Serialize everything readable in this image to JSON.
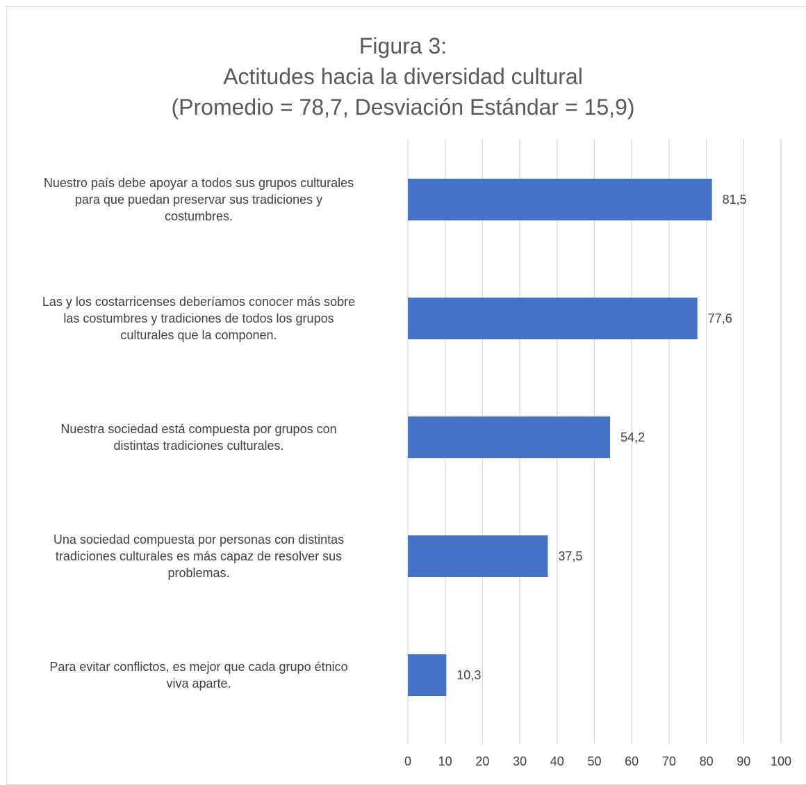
{
  "chart_data": {
    "type": "bar",
    "orientation": "horizontal",
    "title_lines": [
      "Figura 3:",
      "Actitudes hacia la diversidad cultural",
      "(Promedio = 78,7, Desviación Estándar = 15,9)"
    ],
    "categories": [
      "Nuestro país debe apoyar a todos sus grupos culturales para que puedan preservar sus tradiciones y costumbres.",
      "Las y los costarricenses deberíamos conocer más sobre las costumbres y tradiciones de todos los grupos culturales que la componen.",
      "Nuestra sociedad está compuesta por grupos con distintas tradiciones culturales.",
      "Una sociedad compuesta por personas con distintas tradiciones culturales es más capaz de resolver sus problemas.",
      "Para evitar conflictos, es mejor que cada grupo étnico viva aparte."
    ],
    "category_lines": [
      [
        "Nuestro país debe apoyar a todos sus grupos culturales",
        "para que puedan preservar sus tradiciones y",
        "costumbres."
      ],
      [
        "Las y los costarricenses deberíamos conocer más sobre",
        "las costumbres y tradiciones de todos los grupos",
        "culturales que la componen."
      ],
      [
        "Nuestra sociedad está compuesta por grupos con",
        "distintas tradiciones culturales."
      ],
      [
        "Una sociedad compuesta por personas con distintas",
        "tradiciones culturales es más capaz de resolver sus",
        "problemas."
      ],
      [
        "Para evitar conflictos, es mejor que cada grupo étnico",
        "viva aparte."
      ]
    ],
    "values": [
      81.5,
      77.6,
      54.2,
      37.5,
      10.3
    ],
    "value_labels": [
      "81,5",
      "77,6",
      "54,2",
      "37,5",
      "10,3"
    ],
    "xlim": [
      0,
      100
    ],
    "xticks": [
      "0",
      "10",
      "20",
      "30",
      "40",
      "50",
      "60",
      "70",
      "80",
      "90",
      "100"
    ],
    "grid": "vertical",
    "legend": "none",
    "colors": {
      "bar": "#4472c4",
      "grid": "#d9d9d9",
      "title": "#595959",
      "text": "#404040"
    }
  }
}
